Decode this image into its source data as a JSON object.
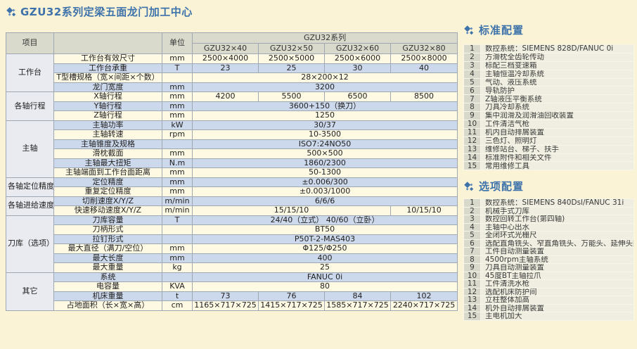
{
  "page_title": "GZU32系列定梁五面龙门加工中心",
  "colors": {
    "accent_blue": "#3d72aa",
    "row_cream": "#fdf9e3",
    "row_blue": "#ccd8eb",
    "header_gray": "#d9dacc",
    "group_col": "#e9ebf1",
    "page_bg": "#fbf3d6"
  },
  "spec_table": {
    "header": {
      "item": "项目",
      "unit": "单位",
      "series": "GZU32系列",
      "models": [
        "GZU32×40",
        "GZU32×50",
        "GZU32×60",
        "GZU32×80"
      ]
    },
    "groups": [
      {
        "name": "工作台",
        "rows": 4
      },
      {
        "name": "各轴行程",
        "rows": 3
      },
      {
        "name": "主轴",
        "rows": 6
      },
      {
        "name": "各轴定位精度",
        "rows": 2
      },
      {
        "name": "各轴进给速度",
        "rows": 2
      },
      {
        "name": "刀库（选项）",
        "rows": 6
      },
      {
        "name": "其它",
        "rows": 4
      }
    ],
    "rows": [
      {
        "label": "工作台有效尺寸",
        "unit": "mm",
        "values": [
          "2500×4000",
          "2500×5000",
          "2500×6000",
          "2500×8000"
        ],
        "spans": [
          1,
          1,
          1,
          1
        ]
      },
      {
        "label": "工作台承重",
        "unit": "T",
        "values": [
          "23",
          "25",
          "30",
          "40"
        ],
        "spans": [
          1,
          1,
          1,
          1
        ]
      },
      {
        "label": "T型槽规格（宽×间距×个数）",
        "unit": "",
        "values": [
          "28×200×12"
        ],
        "spans": [
          4
        ]
      },
      {
        "label": "龙门宽度",
        "unit": "mm",
        "values": [
          "3200"
        ],
        "spans": [
          4
        ]
      },
      {
        "label": "X轴行程",
        "unit": "mm",
        "values": [
          "4200",
          "5500",
          "6500",
          "8500"
        ],
        "spans": [
          1,
          1,
          1,
          1
        ]
      },
      {
        "label": "Y轴行程",
        "unit": "mm",
        "values": [
          "3600+150（换刀）"
        ],
        "spans": [
          4
        ]
      },
      {
        "label": "Z轴行程",
        "unit": "mm",
        "values": [
          "1250"
        ],
        "spans": [
          4
        ]
      },
      {
        "label": "主轴功率",
        "unit": "kW",
        "values": [
          "30/37"
        ],
        "spans": [
          4
        ]
      },
      {
        "label": "主轴转速",
        "unit": "rpm",
        "values": [
          "10-3500"
        ],
        "spans": [
          4
        ]
      },
      {
        "label": "主轴锥度及规格",
        "unit": "",
        "values": [
          "ISO7:24NO50"
        ],
        "spans": [
          4
        ]
      },
      {
        "label": "滑枕截面",
        "unit": "mm",
        "values": [
          "500×500"
        ],
        "spans": [
          4
        ]
      },
      {
        "label": "主轴最大扭矩",
        "unit": "N.m",
        "values": [
          "1860/2300"
        ],
        "spans": [
          4
        ]
      },
      {
        "label": "主轴端面到工作台面距离",
        "unit": "mm",
        "values": [
          "50-1300"
        ],
        "spans": [
          4
        ]
      },
      {
        "label": "定位精度",
        "unit": "mm",
        "values": [
          "±0.006/300"
        ],
        "spans": [
          4
        ]
      },
      {
        "label": "重复定位精度",
        "unit": "mm",
        "values": [
          "±0.003/1000"
        ],
        "spans": [
          4
        ]
      },
      {
        "label": "切削速度X/Y/Z",
        "unit": "m/min",
        "values": [
          "6/6/6"
        ],
        "spans": [
          4
        ]
      },
      {
        "label": "快速移动速度X/Y/Z",
        "unit": "m/min",
        "values": [
          "15/15/10",
          "10/15/10"
        ],
        "spans": [
          3,
          1
        ]
      },
      {
        "label": "刀库容量",
        "unit": "T",
        "values": [
          "24/40（立式） 40/60（立卧）"
        ],
        "spans": [
          4
        ]
      },
      {
        "label": "刀柄形式",
        "unit": "",
        "values": [
          "BT50"
        ],
        "spans": [
          4
        ]
      },
      {
        "label": "拉钉形式",
        "unit": "",
        "values": [
          "P50T-2-MAS403"
        ],
        "spans": [
          4
        ]
      },
      {
        "label": "最大直径（满刀/空位）",
        "unit": "mm",
        "values": [
          "Φ125/Φ250"
        ],
        "spans": [
          4
        ]
      },
      {
        "label": "最大长度",
        "unit": "mm",
        "values": [
          "400"
        ],
        "spans": [
          4
        ]
      },
      {
        "label": "最大重量",
        "unit": "kg",
        "values": [
          "25"
        ],
        "spans": [
          4
        ]
      },
      {
        "label": "系统",
        "unit": "",
        "values": [
          "FANUC 0i"
        ],
        "spans": [
          4
        ]
      },
      {
        "label": "电容量",
        "unit": "KVA",
        "values": [
          "80"
        ],
        "spans": [
          4
        ]
      },
      {
        "label": "机床重量",
        "unit": "t",
        "values": [
          "73",
          "76",
          "84",
          "102"
        ],
        "spans": [
          1,
          1,
          1,
          1
        ]
      },
      {
        "label": "占地面积（长×宽×高）",
        "unit": "cm",
        "values": [
          "1165×717×725",
          "1415×717×725",
          "1585×717×725",
          "2240×717×725"
        ],
        "spans": [
          1,
          1,
          1,
          1
        ]
      }
    ]
  },
  "standard_config": {
    "title": "标准配置",
    "items": [
      "数控系统：SIEMENS 828D/FANUC 0i",
      "方滑枕全齿轮传动",
      "标配三档变速箱",
      "主轴恒温冷却系统",
      "气动、液压系统",
      "导轨防护",
      "Z轴液压平衡系统",
      "刀具冷却系统",
      "集中润滑及润滑油回收装置",
      "工件清洁气枪",
      "机内自动排屑装置",
      "三色灯、照明灯",
      "维修站台、梯子、扶手",
      "标准附件和相关文件",
      "常用维修工具"
    ]
  },
  "optional_config": {
    "title": "选项配置",
    "items": [
      "数控系统：SIEMENS 840Dsl/FANUC 31i",
      "机械手式刀库",
      "数控回转工作台(第四轴)",
      "主轴中心出水",
      "全闭环式光栅尺",
      "选配直角铣头、窄直角铣头、万能头、延伸头附件",
      "工件自动测量装置",
      "4500rpm主轴系统",
      "刀具自动测量装置",
      "45度BT主轴拉爪",
      "工件清洗水枪",
      "选配机床防护间",
      "立柱整体加高",
      "机外自动排屑装置",
      "主电机加大"
    ]
  }
}
